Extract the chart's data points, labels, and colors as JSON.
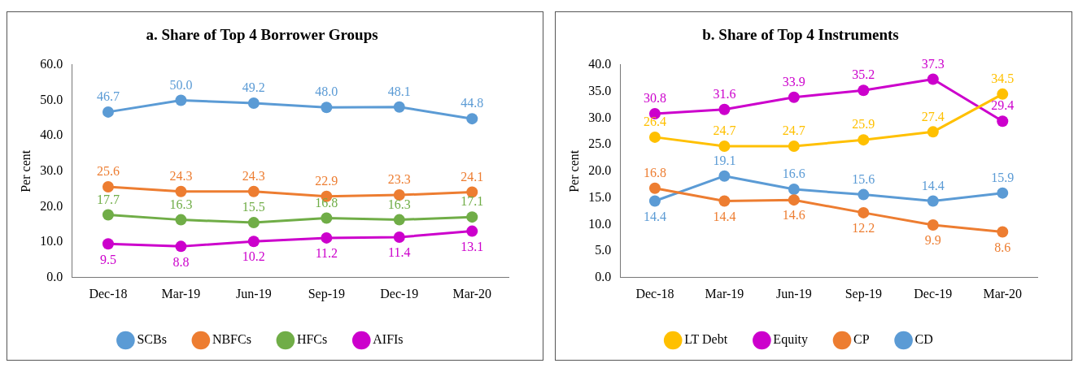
{
  "chart_data": [
    {
      "type": "line",
      "title": "a. Share of Top 4 Borrower Groups",
      "ylabel": "Per cent",
      "categories": [
        "Dec-18",
        "Mar-19",
        "Jun-19",
        "Sep-19",
        "Dec-19",
        "Mar-20"
      ],
      "series": [
        {
          "name": "SCBs",
          "color": "#5b9bd5",
          "values": [
            46.7,
            50.0,
            49.2,
            48.0,
            48.1,
            44.8
          ],
          "value_labels": [
            "46.7",
            "50.0",
            "49.2",
            "48.0",
            "48.1",
            "44.8"
          ]
        },
        {
          "name": "NBFCs",
          "color": "#ed7d31",
          "values": [
            25.6,
            24.3,
            24.3,
            22.9,
            23.3,
            24.1
          ],
          "value_labels": [
            "25.6",
            "24.3",
            "24.3",
            "22.9",
            "23.3",
            "24.1"
          ]
        },
        {
          "name": "HFCs",
          "color": "#70ad47",
          "values": [
            17.7,
            16.3,
            15.5,
            16.8,
            16.3,
            17.1
          ],
          "value_labels": [
            "17.7",
            "16.3",
            "15.5",
            "16.8",
            "16.3",
            "17.1"
          ]
        },
        {
          "name": "AIFIs",
          "color": "#cc00cc",
          "values": [
            9.5,
            8.8,
            10.2,
            11.2,
            11.4,
            13.1
          ],
          "value_labels": [
            "9.5",
            "8.8",
            "10.2",
            "11.2",
            "11.4",
            "13.1"
          ]
        }
      ],
      "ylim": [
        0,
        60
      ],
      "yticks": [
        {
          "value": 0,
          "label": "0.0"
        },
        {
          "value": 10,
          "label": "10.0"
        },
        {
          "value": 20,
          "label": "20.0"
        },
        {
          "value": 30,
          "label": "30.0"
        },
        {
          "value": 40,
          "label": "40.0"
        },
        {
          "value": 50,
          "label": "50.0"
        },
        {
          "value": 60,
          "label": "60.0"
        }
      ],
      "grid": false,
      "legend": "bottom",
      "marker": "circle",
      "line_style": "solid"
    },
    {
      "type": "line",
      "title": "b. Share of Top 4 Instruments",
      "ylabel": "Per cent",
      "categories": [
        "Dec-18",
        "Mar-19",
        "Jun-19",
        "Sep-19",
        "Dec-19",
        "Mar-20"
      ],
      "series": [
        {
          "name": "LT Debt",
          "color": "#ffc000",
          "values": [
            26.4,
            24.7,
            24.7,
            25.9,
            27.4,
            34.5
          ]
        },
        {
          "name": "Equity",
          "color": "#cc00cc",
          "values": [
            30.8,
            31.6,
            33.9,
            35.2,
            37.3,
            29.4
          ]
        },
        {
          "name": "CP",
          "color": "#ed7d31",
          "values": [
            16.8,
            14.4,
            14.6,
            12.2,
            9.9,
            8.6
          ]
        },
        {
          "name": "CD",
          "color": "#5b9bd5",
          "values": [
            14.4,
            19.1,
            16.6,
            15.6,
            14.4,
            15.9
          ]
        }
      ],
      "ylim": [
        0,
        40
      ],
      "yticks": [
        {
          "value": 0,
          "label": "0.0"
        },
        {
          "value": 5,
          "label": "5.0"
        },
        {
          "value": 10,
          "label": "10.0"
        },
        {
          "value": 15,
          "label": "15.0"
        },
        {
          "value": 20,
          "label": "20.0"
        },
        {
          "value": 25,
          "label": "25.0"
        },
        {
          "value": 30,
          "label": "30.0"
        },
        {
          "value": 35,
          "label": "35.0"
        },
        {
          "value": 40,
          "label": "40.0"
        }
      ],
      "grid": false,
      "legend": "bottom",
      "marker": "circle",
      "line_style": "solid",
      "data_labels": true
    }
  ]
}
